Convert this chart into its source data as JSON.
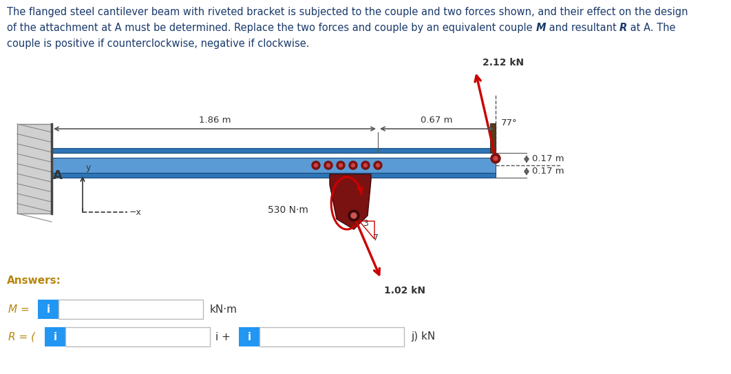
{
  "line1": "The flanged steel cantilever beam with riveted bracket is subjected to the couple and two forces shown, and their effect on the design",
  "line2": "of the attachment at A must be determined. Replace the two forces and couple by an equivalent couple ",
  "line2_M": "M",
  "line2_mid": " and resultant ",
  "line2_R": "R",
  "line2_end": " at A. The",
  "line3": "couple is positive if counterclockwise, negative if clockwise.",
  "title_color": "#1a3a6b",
  "title_fontsize": 10.5,
  "beam_color": "#5b9bd5",
  "beam_dark": "#2e75b6",
  "bracket_color": "#7b1212",
  "bracket_dark": "#3d0808",
  "wall_color": "#d0d0d0",
  "wall_dark": "#888888",
  "force1_label": "2.12 kN",
  "force2_label": "1.02 kN",
  "couple_label": "530 N·m",
  "dim1_label": "1.86 m",
  "dim2_label": "0.67 m",
  "dim3_label": "0.17 m",
  "dim4_label": "0.17 m",
  "angle_label": "77°",
  "answers_label": "Answers:",
  "M_label": "M =",
  "R_label": "R = (",
  "kNm_label": "kN·m",
  "i_plus_label": "i +",
  "j_label": "j) kN",
  "box_color": "#2196F3",
  "answer_text_color": "#b8860b",
  "dark_text": "#333333",
  "background_color": "white",
  "arrow_color": "#cc0000",
  "dim_color": "#555555"
}
